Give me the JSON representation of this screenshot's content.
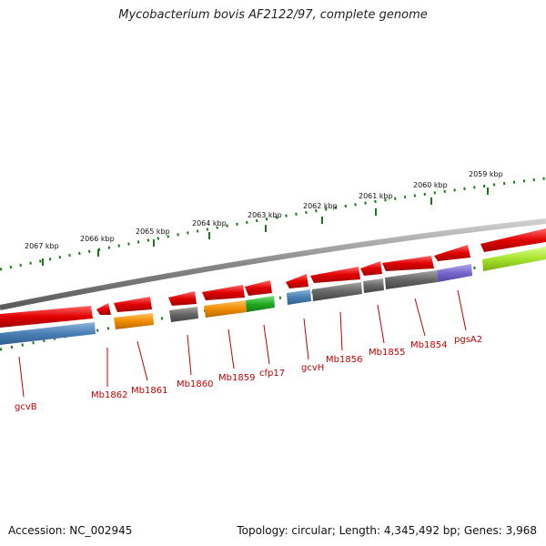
{
  "title": "Mycobacterium bovis AF2122/97, complete genome",
  "footer": {
    "accession": "Accession: NC_002945",
    "summary": "Topology: circular; Length: 4,345,492 bp; Genes: 3,968"
  },
  "colors": {
    "forward_gene": "#e00000",
    "backbone": "#888888",
    "tick": "#1a7a1a",
    "label": "#c00000"
  },
  "ruler": [
    {
      "label": "2067 kbp"
    },
    {
      "label": "2066 kbp"
    },
    {
      "label": "2065 kbp"
    },
    {
      "label": "2064 kbp"
    },
    {
      "label": "2063 kbp"
    },
    {
      "label": "2062 kbp"
    },
    {
      "label": "2061 kbp"
    },
    {
      "label": "2060 kbp"
    },
    {
      "label": "2059 kbp"
    }
  ],
  "genes": [
    {
      "label": "gcvB",
      "color": "#4a7fb5"
    },
    {
      "label": "Mb1862",
      "color": "#e00000"
    },
    {
      "label": "Mb1861",
      "color": "#f08c00"
    },
    {
      "label": "Mb1860",
      "color": "#666666"
    },
    {
      "label": "Mb1859",
      "color": "#f08c00"
    },
    {
      "label": "cfp17",
      "color": "#22aa22"
    },
    {
      "label": "gcvH",
      "color": "#4a7fb5"
    },
    {
      "label": "Mb1856",
      "color": "#666666"
    },
    {
      "label": "Mb1855",
      "color": "#666666"
    },
    {
      "label": "Mb1854",
      "color": "#666666"
    },
    {
      "label": "pgsA2",
      "color": "#7766cc"
    }
  ]
}
